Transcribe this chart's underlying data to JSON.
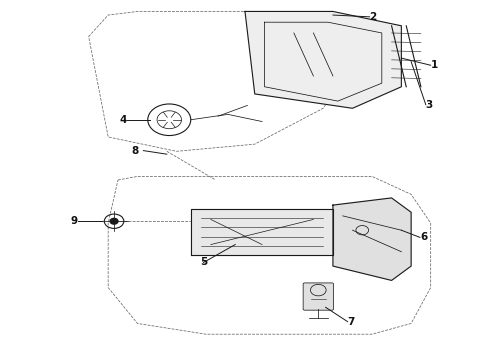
{
  "bg_color": "#ffffff",
  "line_color": "#1a1a1a",
  "dashed_color": "#666666",
  "label_color": "#111111",
  "fig_width": 4.9,
  "fig_height": 3.6,
  "dpi": 100,
  "label_fontsize": 7.5,
  "label_fontweight": "bold"
}
